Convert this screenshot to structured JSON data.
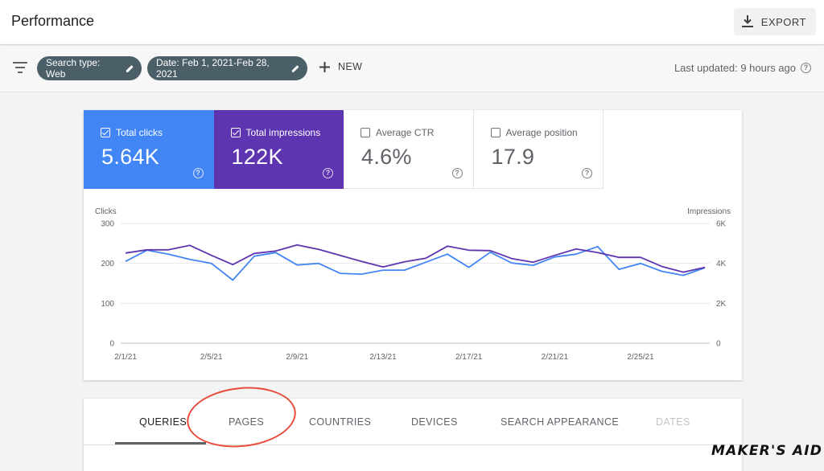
{
  "header": {
    "title": "Performance",
    "export_label": "EXPORT"
  },
  "filters": {
    "chip_search_type": "Search type: Web",
    "chip_date": "Date: Feb 1, 2021-Feb 28, 2021",
    "new_label": "NEW",
    "last_updated": "Last updated: 9 hours ago"
  },
  "metrics": [
    {
      "label": "Total clicks",
      "value": "5.64K",
      "checked": true,
      "color": "#4285f4"
    },
    {
      "label": "Total impressions",
      "value": "122K",
      "checked": true,
      "color": "#5e35b1"
    },
    {
      "label": "Average CTR",
      "value": "4.6%",
      "checked": false
    },
    {
      "label": "Average position",
      "value": "17.9",
      "checked": false
    }
  ],
  "chart_data": {
    "type": "line",
    "left_axis_label": "Clicks",
    "right_axis_label": "Impressions",
    "left_ticks": [
      "300",
      "200",
      "100",
      "0"
    ],
    "right_ticks": [
      "6K",
      "4K",
      "2K",
      "0"
    ],
    "ylim_left": [
      0,
      300
    ],
    "ylim_right": [
      0,
      6000
    ],
    "x_tick_labels": [
      "2/1/21",
      "2/5/21",
      "2/9/21",
      "2/13/21",
      "2/17/21",
      "2/21/21",
      "2/25/21"
    ],
    "x": [
      "2/1/21",
      "2/2/21",
      "2/3/21",
      "2/4/21",
      "2/5/21",
      "2/6/21",
      "2/7/21",
      "2/8/21",
      "2/9/21",
      "2/10/21",
      "2/11/21",
      "2/12/21",
      "2/13/21",
      "2/14/21",
      "2/15/21",
      "2/16/21",
      "2/17/21",
      "2/18/21",
      "2/19/21",
      "2/20/21",
      "2/21/21",
      "2/22/21",
      "2/23/21",
      "2/24/21",
      "2/25/21",
      "2/26/21",
      "2/27/21",
      "2/28/21"
    ],
    "series": [
      {
        "axis": "left",
        "color": "#4285f4",
        "values": [
          205,
          233,
          223,
          210,
          200,
          158,
          218,
          227,
          196,
          200,
          175,
          173,
          183,
          183,
          203,
          223,
          190,
          228,
          201,
          195,
          216,
          223,
          242,
          185,
          200,
          180,
          170,
          189
        ]
      },
      {
        "axis": "right",
        "color": "#5e35b1",
        "values": [
          4520,
          4680,
          4680,
          4900,
          4400,
          3940,
          4500,
          4620,
          4920,
          4700,
          4400,
          4100,
          3820,
          4080,
          4260,
          4860,
          4660,
          4640,
          4240,
          4060,
          4400,
          4720,
          4540,
          4300,
          4300,
          3840,
          3560,
          3800
        ]
      }
    ],
    "grid": true
  },
  "tabs": [
    "QUERIES",
    "PAGES",
    "COUNTRIES",
    "DEVICES",
    "SEARCH APPEARANCE",
    "DATES"
  ],
  "watermark": "MAKER'S AID"
}
